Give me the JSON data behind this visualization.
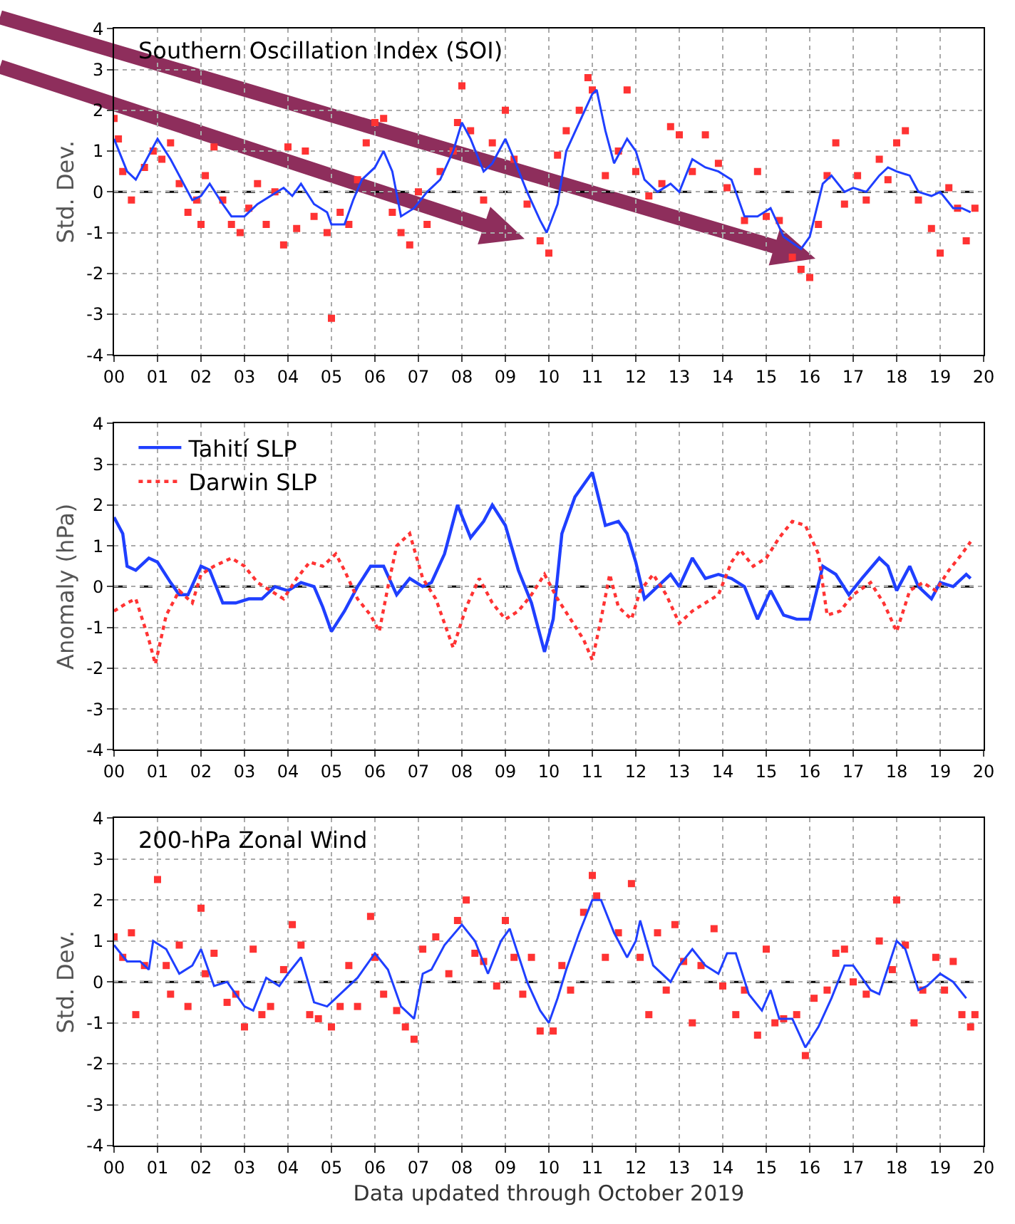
{
  "chart_data": [
    {
      "type": "line",
      "title": "Southern Oscillation Index (SOI)",
      "ylabel": "Std. Dev.",
      "xlim": [
        0,
        20
      ],
      "ylim": [
        -4,
        4
      ],
      "xticks": [
        {
          "value": 0,
          "label": "00"
        },
        {
          "value": 1,
          "label": "01"
        },
        {
          "value": 2,
          "label": "02"
        },
        {
          "value": 3,
          "label": "03"
        },
        {
          "value": 4,
          "label": "04"
        },
        {
          "value": 5,
          "label": "05"
        },
        {
          "value": 6,
          "label": "06"
        },
        {
          "value": 7,
          "label": "07"
        },
        {
          "value": 8,
          "label": "08"
        },
        {
          "value": 9,
          "label": "09"
        },
        {
          "value": 10,
          "label": "10"
        },
        {
          "value": 11,
          "label": "11"
        },
        {
          "value": 12,
          "label": "12"
        },
        {
          "value": 13,
          "label": "13"
        },
        {
          "value": 14,
          "label": "14"
        },
        {
          "value": 15,
          "label": "15"
        },
        {
          "value": 16,
          "label": "16"
        },
        {
          "value": 17,
          "label": "17"
        },
        {
          "value": 18,
          "label": "18"
        },
        {
          "value": 19,
          "label": "19"
        },
        {
          "value": 20,
          "label": "20"
        }
      ],
      "yticks": [
        -4,
        -3,
        -2,
        -1,
        0,
        1,
        2,
        3,
        4
      ],
      "grid": true,
      "legend": false,
      "ref_lines": [
        {
          "axis": "y",
          "value": 0,
          "label": null,
          "color": "#000000",
          "line_style": "dashed"
        }
      ],
      "series": [
        {
          "type": "scatter",
          "marker": "square",
          "color": "#ff3333",
          "x": [
            0.0,
            0.1,
            0.2,
            0.4,
            0.7,
            0.9,
            1.1,
            1.3,
            1.5,
            1.7,
            1.9,
            2.0,
            2.1,
            2.3,
            2.5,
            2.7,
            2.9,
            3.1,
            3.3,
            3.5,
            3.7,
            3.9,
            4.0,
            4.2,
            4.4,
            4.6,
            4.9,
            5.0,
            5.2,
            5.4,
            5.6,
            5.8,
            6.0,
            6.2,
            6.4,
            6.6,
            6.8,
            7.0,
            7.2,
            7.5,
            7.8,
            7.9,
            8.0,
            8.2,
            8.5,
            8.7,
            9.0,
            9.2,
            9.5,
            9.8,
            10.0,
            10.2,
            10.4,
            10.7,
            10.9,
            11.0,
            11.3,
            11.6,
            11.8,
            12.0,
            12.3,
            12.6,
            12.8,
            13.0,
            13.3,
            13.6,
            13.9,
            14.1,
            14.5,
            14.8,
            15.0,
            15.3,
            15.6,
            15.8,
            16.0,
            16.2,
            16.4,
            16.6,
            16.8,
            17.1,
            17.3,
            17.6,
            17.8,
            18.0,
            18.2,
            18.5,
            18.8,
            19.0,
            19.2,
            19.4,
            19.6,
            19.8
          ],
          "values": [
            1.8,
            1.3,
            0.5,
            -0.2,
            0.6,
            1.0,
            0.8,
            1.2,
            0.2,
            -0.5,
            -0.2,
            -0.8,
            0.4,
            1.1,
            -0.2,
            -0.8,
            -1.0,
            -0.4,
            0.2,
            -0.8,
            0.0,
            -1.3,
            1.1,
            -0.9,
            1.0,
            -0.6,
            -1.0,
            -3.1,
            -0.5,
            -0.8,
            0.3,
            1.2,
            1.7,
            1.8,
            -0.5,
            -1.0,
            -1.3,
            0.0,
            -0.8,
            0.5,
            1.0,
            1.7,
            2.6,
            1.5,
            -0.2,
            1.2,
            2.0,
            0.8,
            -0.3,
            -1.2,
            -1.5,
            0.9,
            1.5,
            2.0,
            2.8,
            2.5,
            0.4,
            1.0,
            2.5,
            0.5,
            -0.1,
            0.2,
            1.6,
            1.4,
            0.5,
            1.4,
            0.7,
            0.1,
            -0.7,
            0.5,
            -0.6,
            -0.7,
            -1.6,
            -1.9,
            -2.1,
            -0.8,
            0.4,
            1.2,
            -0.3,
            0.4,
            -0.2,
            0.8,
            0.3,
            1.2,
            1.5,
            -0.2,
            -0.9,
            -1.5,
            0.1,
            -0.4,
            -1.2,
            -0.4
          ]
        },
        {
          "color": "#1f3fff",
          "line_style": "solid",
          "x": [
            0,
            0.3,
            0.5,
            0.8,
            1.0,
            1.3,
            1.6,
            1.8,
            2.0,
            2.2,
            2.5,
            2.7,
            3.0,
            3.3,
            3.6,
            3.9,
            4.1,
            4.3,
            4.6,
            4.9,
            5.0,
            5.3,
            5.5,
            5.7,
            6.0,
            6.2,
            6.4,
            6.6,
            6.9,
            7.2,
            7.5,
            7.8,
            8.0,
            8.2,
            8.5,
            8.7,
            9.0,
            9.2,
            9.5,
            9.8,
            9.95,
            10.2,
            10.4,
            10.7,
            11.0,
            11.1,
            11.3,
            11.5,
            11.8,
            12.0,
            12.2,
            12.5,
            12.8,
            13.0,
            13.3,
            13.6,
            13.9,
            14.2,
            14.5,
            14.8,
            15.1,
            15.4,
            15.8,
            16.0,
            16.3,
            16.5,
            16.8,
            17.0,
            17.3,
            17.6,
            17.8,
            18.0,
            18.3,
            18.5,
            18.8,
            19.0,
            19.3,
            19.5,
            19.7
          ],
          "values": [
            1.3,
            0.5,
            0.3,
            0.9,
            1.3,
            0.8,
            0.2,
            -0.2,
            -0.1,
            0.2,
            -0.3,
            -0.6,
            -0.6,
            -0.3,
            -0.1,
            0.1,
            -0.1,
            0.2,
            -0.3,
            -0.5,
            -0.8,
            -0.8,
            -0.2,
            0.3,
            0.6,
            1.0,
            0.5,
            -0.6,
            -0.4,
            0.0,
            0.3,
            1.0,
            1.7,
            1.3,
            0.5,
            0.7,
            1.3,
            0.8,
            0.0,
            -0.7,
            -1.0,
            -0.3,
            1.0,
            1.7,
            2.4,
            2.5,
            1.5,
            0.7,
            1.3,
            1.0,
            0.3,
            0.0,
            0.2,
            0.0,
            0.8,
            0.6,
            0.5,
            0.3,
            -0.6,
            -0.6,
            -0.4,
            -1.1,
            -1.4,
            -1.1,
            0.2,
            0.4,
            0.0,
            0.1,
            0.0,
            0.4,
            0.6,
            0.5,
            0.4,
            0.0,
            -0.1,
            0.0,
            -0.4,
            -0.4,
            -0.5
          ]
        }
      ]
    },
    {
      "type": "line",
      "ylabel": "Anomaly (hPa)",
      "xlim": [
        0,
        20
      ],
      "ylim": [
        -4,
        4
      ],
      "xticks": [
        {
          "value": 0,
          "label": "00"
        },
        {
          "value": 1,
          "label": "01"
        },
        {
          "value": 2,
          "label": "02"
        },
        {
          "value": 3,
          "label": "03"
        },
        {
          "value": 4,
          "label": "04"
        },
        {
          "value": 5,
          "label": "05"
        },
        {
          "value": 6,
          "label": "06"
        },
        {
          "value": 7,
          "label": "07"
        },
        {
          "value": 8,
          "label": "08"
        },
        {
          "value": 9,
          "label": "09"
        },
        {
          "value": 10,
          "label": "10"
        },
        {
          "value": 11,
          "label": "11"
        },
        {
          "value": 12,
          "label": "12"
        },
        {
          "value": 13,
          "label": "13"
        },
        {
          "value": 14,
          "label": "14"
        },
        {
          "value": 15,
          "label": "15"
        },
        {
          "value": 16,
          "label": "16"
        },
        {
          "value": 17,
          "label": "17"
        },
        {
          "value": 18,
          "label": "18"
        },
        {
          "value": 19,
          "label": "19"
        },
        {
          "value": 20,
          "label": "20"
        }
      ],
      "yticks": [
        -4,
        -3,
        -2,
        -1,
        0,
        1,
        2,
        3,
        4
      ],
      "grid": true,
      "legend": "top left",
      "ref_lines": [
        {
          "axis": "y",
          "value": 0,
          "label": null,
          "color": "#000000",
          "line_style": "dashed"
        }
      ],
      "series": [
        {
          "name": "Tahití SLP",
          "color": "#1f3fff",
          "line_style": "solid",
          "x": [
            0,
            0.2,
            0.3,
            0.5,
            0.8,
            1.0,
            1.3,
            1.5,
            1.7,
            2.0,
            2.2,
            2.5,
            2.8,
            3.1,
            3.4,
            3.7,
            4.0,
            4.3,
            4.6,
            4.8,
            5.0,
            5.3,
            5.6,
            5.9,
            6.2,
            6.5,
            6.8,
            7.1,
            7.3,
            7.6,
            7.9,
            8.2,
            8.5,
            8.7,
            9.0,
            9.3,
            9.6,
            9.9,
            10.1,
            10.3,
            10.6,
            11.0,
            11.3,
            11.6,
            11.8,
            12.0,
            12.2,
            12.5,
            12.8,
            13.0,
            13.3,
            13.6,
            13.9,
            14.2,
            14.5,
            14.8,
            15.1,
            15.4,
            15.7,
            16.0,
            16.3,
            16.6,
            16.9,
            17.2,
            17.6,
            17.8,
            18.0,
            18.3,
            18.5,
            18.8,
            19.0,
            19.3,
            19.6,
            19.7
          ],
          "values": [
            1.7,
            1.3,
            0.5,
            0.4,
            0.7,
            0.6,
            0.1,
            -0.2,
            -0.2,
            0.5,
            0.4,
            -0.4,
            -0.4,
            -0.3,
            -0.3,
            0.0,
            -0.1,
            0.1,
            0.0,
            -0.5,
            -1.1,
            -0.6,
            0.0,
            0.5,
            0.5,
            -0.2,
            0.2,
            0.0,
            0.1,
            0.8,
            2.0,
            1.2,
            1.6,
            2.0,
            1.5,
            0.4,
            -0.4,
            -1.6,
            -0.8,
            1.3,
            2.2,
            2.8,
            1.5,
            1.6,
            1.3,
            0.6,
            -0.3,
            0.0,
            0.3,
            0.0,
            0.7,
            0.2,
            0.3,
            0.2,
            0.0,
            -0.8,
            -0.1,
            -0.7,
            -0.8,
            -0.8,
            0.5,
            0.3,
            -0.2,
            0.2,
            0.7,
            0.5,
            -0.1,
            0.5,
            0.0,
            -0.3,
            0.1,
            0.0,
            0.3,
            0.2
          ]
        },
        {
          "name": "Darwin SLP",
          "color": "#ff3333",
          "line_style": "dotted",
          "x": [
            0,
            0.3,
            0.5,
            0.8,
            0.95,
            1.2,
            1.5,
            1.8,
            2.0,
            2.3,
            2.7,
            3.0,
            3.3,
            3.6,
            3.9,
            4.2,
            4.5,
            4.8,
            5.1,
            5.3,
            5.6,
            5.9,
            6.1,
            6.3,
            6.5,
            6.8,
            7.1,
            7.4,
            7.8,
            8.1,
            8.4,
            8.7,
            9.0,
            9.3,
            9.6,
            9.9,
            10.2,
            10.5,
            10.8,
            11.0,
            11.2,
            11.4,
            11.6,
            11.9,
            12.1,
            12.4,
            12.7,
            13.0,
            13.3,
            13.6,
            13.9,
            14.2,
            14.4,
            14.7,
            15.0,
            15.3,
            15.6,
            15.9,
            16.2,
            16.4,
            16.7,
            17.0,
            17.4,
            17.7,
            18.0,
            18.3,
            18.6,
            18.9,
            19.2,
            19.5,
            19.7
          ],
          "values": [
            -0.6,
            -0.4,
            -0.3,
            -1.3,
            -1.9,
            -0.7,
            -0.1,
            -0.4,
            0.3,
            0.5,
            0.7,
            0.5,
            0.1,
            -0.1,
            -0.3,
            0.2,
            0.6,
            0.5,
            0.8,
            0.4,
            -0.3,
            -0.7,
            -1.1,
            0.0,
            1.0,
            1.3,
            0.2,
            -0.3,
            -1.5,
            -0.5,
            0.2,
            -0.4,
            -0.8,
            -0.6,
            -0.2,
            0.3,
            -0.3,
            -0.8,
            -1.3,
            -1.8,
            -0.8,
            0.3,
            -0.5,
            -0.8,
            -0.1,
            0.3,
            -0.2,
            -0.9,
            -0.6,
            -0.4,
            -0.2,
            0.6,
            0.9,
            0.5,
            0.7,
            1.2,
            1.6,
            1.5,
            0.8,
            -0.7,
            -0.6,
            -0.2,
            0.1,
            -0.4,
            -1.1,
            -0.1,
            0.1,
            -0.1,
            0.4,
            0.8,
            1.1
          ]
        }
      ]
    },
    {
      "type": "line",
      "title": "200-hPa Zonal Wind",
      "ylabel": "Std. Dev.",
      "xlabel": "Data updated through October 2019",
      "xlim": [
        0,
        20
      ],
      "ylim": [
        -4,
        4
      ],
      "xticks": [
        {
          "value": 0,
          "label": "00"
        },
        {
          "value": 1,
          "label": "01"
        },
        {
          "value": 2,
          "label": "02"
        },
        {
          "value": 3,
          "label": "03"
        },
        {
          "value": 4,
          "label": "04"
        },
        {
          "value": 5,
          "label": "05"
        },
        {
          "value": 6,
          "label": "06"
        },
        {
          "value": 7,
          "label": "07"
        },
        {
          "value": 8,
          "label": "08"
        },
        {
          "value": 9,
          "label": "09"
        },
        {
          "value": 10,
          "label": "10"
        },
        {
          "value": 11,
          "label": "11"
        },
        {
          "value": 12,
          "label": "12"
        },
        {
          "value": 13,
          "label": "13"
        },
        {
          "value": 14,
          "label": "14"
        },
        {
          "value": 15,
          "label": "15"
        },
        {
          "value": 16,
          "label": "16"
        },
        {
          "value": 17,
          "label": "17"
        },
        {
          "value": 18,
          "label": "18"
        },
        {
          "value": 19,
          "label": "19"
        },
        {
          "value": 20,
          "label": "20"
        }
      ],
      "yticks": [
        -4,
        -3,
        -2,
        -1,
        0,
        1,
        2,
        3,
        4
      ],
      "grid": true,
      "legend": false,
      "ref_lines": [
        {
          "axis": "y",
          "value": 0,
          "label": null,
          "color": "#000000",
          "line_style": "dashed"
        }
      ],
      "series": [
        {
          "type": "scatter",
          "marker": "square",
          "color": "#ff3333",
          "x": [
            0.0,
            0.2,
            0.4,
            0.5,
            0.7,
            1.0,
            1.2,
            1.3,
            1.5,
            1.7,
            2.0,
            2.1,
            2.3,
            2.6,
            2.8,
            3.0,
            3.2,
            3.4,
            3.6,
            3.9,
            4.1,
            4.3,
            4.5,
            4.7,
            5.0,
            5.2,
            5.4,
            5.6,
            5.9,
            6.0,
            6.2,
            6.5,
            6.7,
            6.9,
            7.1,
            7.4,
            7.7,
            7.9,
            8.1,
            8.3,
            8.5,
            8.8,
            9.0,
            9.2,
            9.4,
            9.6,
            9.8,
            10.1,
            10.3,
            10.5,
            10.8,
            11.0,
            11.1,
            11.3,
            11.6,
            11.9,
            12.1,
            12.3,
            12.5,
            12.7,
            12.9,
            13.1,
            13.3,
            13.5,
            13.8,
            14.0,
            14.3,
            14.5,
            14.8,
            15.0,
            15.2,
            15.4,
            15.7,
            15.9,
            16.1,
            16.4,
            16.6,
            16.8,
            17.0,
            17.3,
            17.6,
            17.9,
            18.0,
            18.2,
            18.4,
            18.6,
            18.9,
            19.1,
            19.3,
            19.5,
            19.7,
            19.8
          ],
          "values": [
            1.1,
            0.6,
            1.2,
            -0.8,
            0.4,
            2.5,
            0.4,
            -0.3,
            0.9,
            -0.6,
            1.8,
            0.2,
            0.7,
            -0.5,
            -0.3,
            -1.1,
            0.8,
            -0.8,
            -0.6,
            0.3,
            1.4,
            0.9,
            -0.8,
            -0.9,
            -1.1,
            -0.6,
            0.4,
            -0.6,
            1.6,
            0.6,
            -0.3,
            -0.7,
            -1.1,
            -1.4,
            0.8,
            1.1,
            0.2,
            1.5,
            2.0,
            0.7,
            0.5,
            -0.1,
            1.5,
            0.6,
            -0.3,
            0.6,
            -1.2,
            -1.2,
            0.4,
            -0.2,
            1.7,
            2.6,
            2.1,
            0.6,
            1.2,
            2.4,
            0.6,
            -0.8,
            1.2,
            -0.2,
            1.4,
            0.5,
            -1.0,
            0.4,
            1.3,
            -0.1,
            -0.8,
            -0.2,
            -1.3,
            0.8,
            -1.0,
            -0.9,
            -0.8,
            -1.8,
            -0.4,
            -0.2,
            0.7,
            0.8,
            0.0,
            -0.3,
            1.0,
            0.3,
            2.0,
            0.9,
            -1.0,
            -0.2,
            0.6,
            -0.2,
            0.5,
            -0.8,
            -1.1,
            -0.8
          ]
        },
        {
          "color": "#1f3fff",
          "line_style": "solid",
          "x": [
            0,
            0.3,
            0.6,
            0.8,
            0.9,
            1.2,
            1.5,
            1.8,
            2.0,
            2.3,
            2.6,
            3.0,
            3.2,
            3.5,
            3.8,
            4.0,
            4.3,
            4.6,
            4.9,
            5.1,
            5.4,
            5.6,
            6.0,
            6.3,
            6.6,
            6.9,
            7.1,
            7.3,
            7.6,
            8.0,
            8.3,
            8.6,
            8.9,
            9.1,
            9.5,
            9.8,
            10.0,
            10.2,
            10.4,
            10.7,
            11.0,
            11.2,
            11.5,
            11.8,
            12.0,
            12.1,
            12.4,
            12.8,
            13.0,
            13.3,
            13.6,
            13.9,
            14.1,
            14.3,
            14.6,
            14.9,
            15.1,
            15.3,
            15.6,
            15.9,
            16.2,
            16.5,
            16.8,
            17.0,
            17.4,
            17.6,
            18.0,
            18.2,
            18.5,
            18.7,
            19.0,
            19.3,
            19.6
          ],
          "values": [
            0.9,
            0.5,
            0.5,
            0.3,
            1.0,
            0.8,
            0.2,
            0.4,
            0.8,
            -0.1,
            0.0,
            -0.6,
            -0.7,
            0.1,
            -0.1,
            0.2,
            0.6,
            -0.5,
            -0.6,
            -0.4,
            -0.1,
            0.1,
            0.7,
            0.3,
            -0.6,
            -0.9,
            0.2,
            0.3,
            0.9,
            1.4,
            1.0,
            0.2,
            1.0,
            1.3,
            0.0,
            -0.7,
            -1.0,
            -0.4,
            0.3,
            1.2,
            2.0,
            2.0,
            1.2,
            0.6,
            1.0,
            1.5,
            0.4,
            0.0,
            0.4,
            0.8,
            0.4,
            0.2,
            0.7,
            0.7,
            -0.3,
            -0.7,
            -0.2,
            -0.9,
            -0.9,
            -1.6,
            -1.1,
            -0.4,
            0.4,
            0.4,
            -0.2,
            -0.3,
            1.0,
            0.8,
            -0.2,
            -0.1,
            0.2,
            0.0,
            -0.4
          ]
        }
      ]
    }
  ]
}
